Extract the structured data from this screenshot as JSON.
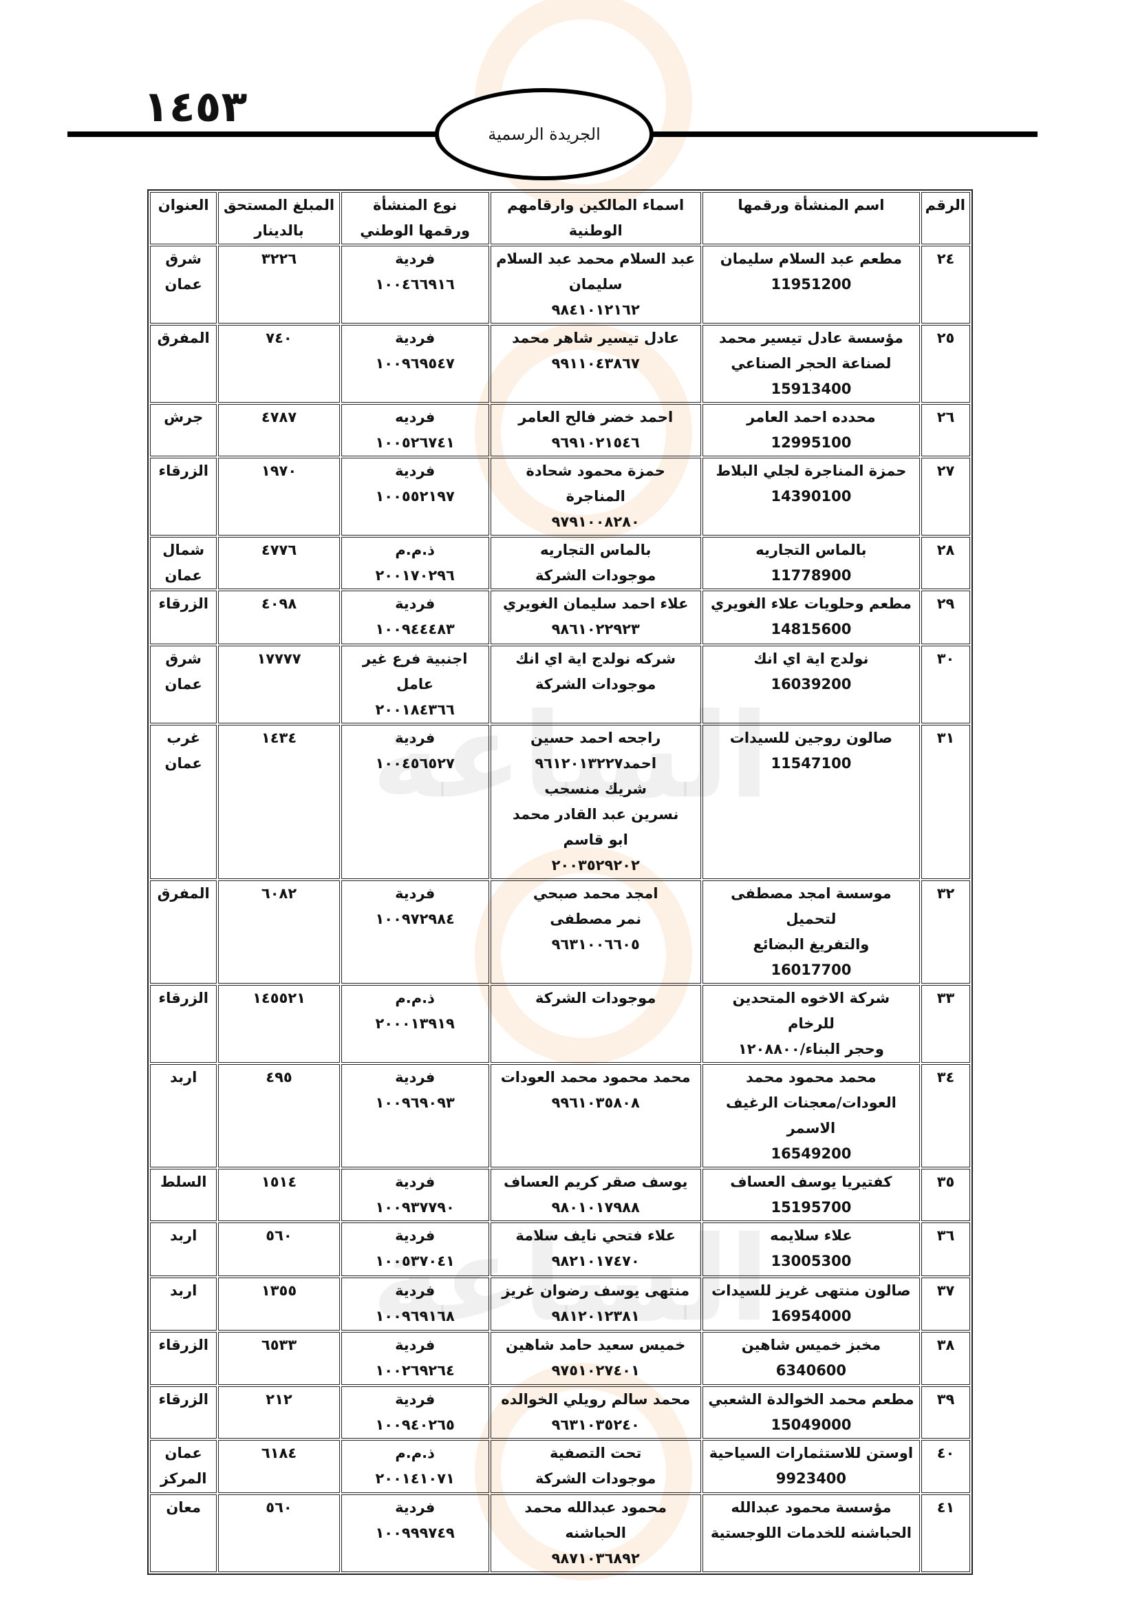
{
  "header": {
    "page_number": "١٤٥٣",
    "gazette_title": "الجريدة الرسمية"
  },
  "watermark": {
    "text": "مدار الساعة الإخبارية"
  },
  "table": {
    "columns": [
      "الرقم",
      "اسم المنشأة ورقمها",
      "اسماء المالكين وارقامهم الوطنية",
      "نوع المنشأة ورقمها الوطني",
      "المبلغ المستحق بالدينار",
      "العنوان"
    ],
    "rows": [
      {
        "num": "٢٤",
        "name": "مطعم عبد السلام سليمان\n11951200",
        "owners": "عبد السلام محمد عبد السلام\nسليمان\n٩٨٤١٠١٢١٦٢",
        "type": "فردية\n١٠٠٤٦٦٩١٦",
        "amount": "٣٢٢٦",
        "address": "شرق\nعمان"
      },
      {
        "num": "٢٥",
        "name": "مؤسسة عادل تيسير محمد\nلصناعة الحجر الصناعي\n15913400",
        "owners": "عادل تيسير شاهر محمد\n٩٩١١٠٤٣٨٦٧",
        "type": "فردية\n١٠٠٩٦٩٥٤٧",
        "amount": "٧٤٠",
        "address": "المفرق"
      },
      {
        "num": "٢٦",
        "name": "محدده احمد العامر\n12995100",
        "owners": "احمد خضر فالح العامر\n٩٦٩١٠٢١٥٤٦",
        "type": "فرديه\n١٠٠٥٢٦٧٤١",
        "amount": "٤٧٨٧",
        "address": "جرش"
      },
      {
        "num": "٢٧",
        "name": "حمزة المناجرة لجلي البلاط\n14390100",
        "owners": "حمزة محمود شحادة المناجرة\n٩٧٩١٠٠٨٢٨٠",
        "type": "فردية\n١٠٠٥٥٢١٩٧",
        "amount": "١٩٧٠",
        "address": "الزرقاء"
      },
      {
        "num": "٢٨",
        "name": "بالماس التجاريه\n11778900",
        "owners": "بالماس التجاريه\nموجودات الشركة",
        "type": "ذ.م.م\n٢٠٠١٧٠٢٩٦",
        "amount": "٤٧٧٦",
        "address": "شمال\nعمان"
      },
      {
        "num": "٢٩",
        "name": "مطعم وحلويات علاء الغويري\n14815600",
        "owners": "علاء احمد سليمان الغويري\n٩٨٦١٠٢٢٩٢٣",
        "type": "فردية\n١٠٠٩٤٤٤٨٣",
        "amount": "٤٠٩٨",
        "address": "الزرقاء"
      },
      {
        "num": "٣٠",
        "name": "نولدج اية اي انك\n16039200",
        "owners": "شركه نولدج اية اي انك\nموجودات الشركة",
        "type": "اجنبية فرع غير\nعامل\n٢٠٠١٨٤٣٦٦",
        "amount": "١٧٧٧٧",
        "address": "شرق\nعمان"
      },
      {
        "num": "٣١",
        "name": "صالون روجين للسيدات\n11547100",
        "owners": "راجحه احمد حسين\nاحمد٩٦١٢٠١٣٢٢٧\nشريك منسحب\nنسرين عبد القادر محمد\nابو قاسم\n٢٠٠٣٥٢٩٢٠٢",
        "type": "فردية\n١٠٠٤٥٦٥٢٧",
        "amount": "١٤٣٤",
        "address": "غرب\nعمان"
      },
      {
        "num": "٣٢",
        "name": "موسسة امجد مصطفى لتحميل\nوالتفريغ البضائع\n16017700",
        "owners": "امجد محمد صبحي\nنمر مصطفى\n٩٦٣١٠٠٦٦٠٥",
        "type": "فردية\n١٠٠٩٧٢٩٨٤",
        "amount": "٦٠٨٢",
        "address": "المفرق"
      },
      {
        "num": "٣٣",
        "name": "شركة الاخوه المتحدين للرخام\nوحجر البناء/١٢٠٨٨٠٠",
        "owners": "موجودات الشركة",
        "type": "ذ.م.م\n٢٠٠٠١٣٩١٩",
        "amount": "١٤٥٥٢١",
        "address": "الزرقاء"
      },
      {
        "num": "٣٤",
        "name": "محمد محمود محمد\nالعودات/معجنات الرغيف\nالاسمر\n16549200",
        "owners": "محمد محمود محمد العودات\n٩٩٦١٠٣٥٨٠٨",
        "type": "فردية\n١٠٠٩٦٩٠٩٣",
        "amount": "٤٩٥",
        "address": "اربد"
      },
      {
        "num": "٣٥",
        "name": "كفتيريا يوسف العساف\n15195700",
        "owners": "يوسف صقر كريم العساف\n٩٨٠١٠١٧٩٨٨",
        "type": "فردية\n١٠٠٩٣٧٧٩٠",
        "amount": "١٥١٤",
        "address": "السلط"
      },
      {
        "num": "٣٦",
        "name": "علاء سلايمه\n13005300",
        "owners": "علاء فتحي نايف سلامة\n٩٨٢١٠١٧٤٧٠",
        "type": "فردية\n١٠٠٥٣٧٠٤١",
        "amount": "٥٦٠",
        "address": "اربد"
      },
      {
        "num": "٣٧",
        "name": "صالون منتهى غريز للسيدات\n16954000",
        "owners": "منتهى يوسف رضوان غريز\n٩٨١٢٠١٢٣٨١",
        "type": "فردية\n١٠٠٩٦٩١٦٨",
        "amount": "١٣٥٥",
        "address": "اربد"
      },
      {
        "num": "٣٨",
        "name": "مخبز خميس شاهين\n6340600",
        "owners": "خميس سعيد حامد شاهين\n٩٧٥١٠٢٧٤٠١",
        "type": "فردية\n١٠٠٢٦٩٢٦٤",
        "amount": "٦٥٣٣",
        "address": "الزرقاء"
      },
      {
        "num": "٣٩",
        "name": "مطعم محمد الخوالدة الشعبي\n15049000",
        "owners": "محمد سالم رويلي الخوالده\n٩٦٣١٠٣٥٢٤٠",
        "type": "فردية\n١٠٠٩٤٠٢٦٥",
        "amount": "٢١٢",
        "address": "الزرقاء"
      },
      {
        "num": "٤٠",
        "name": "اوستن للاستثمارات السياحية\n9923400",
        "owners": "تحت التصفية\nموجودات الشركة",
        "type": "ذ.م.م\n٢٠٠١٤١٠٧١",
        "amount": "٦١٨٤",
        "address": "عمان\nالمركز"
      },
      {
        "num": "٤١",
        "name": "مؤسسة محمود عبدالله\nالحباشنه للخدمات اللوجستية",
        "owners": "محمود عبدالله محمد الحباشنه\n٩٨٧١٠٣٦٨٩٢",
        "type": "فردية\n١٠٠٩٩٩٧٤٩",
        "amount": "٥٦٠",
        "address": "معان"
      }
    ]
  }
}
